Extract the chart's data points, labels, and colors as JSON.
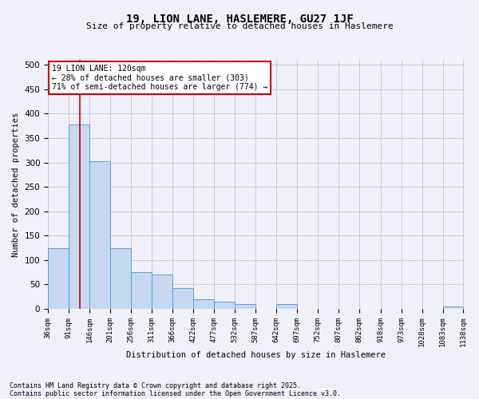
{
  "title1": "19, LION LANE, HASLEMERE, GU27 1JF",
  "title2": "Size of property relative to detached houses in Haslemere",
  "xlabel": "Distribution of detached houses by size in Haslemere",
  "ylabel": "Number of detached properties",
  "bar_heights": [
    125,
    378,
    303,
    125,
    75,
    70,
    42,
    20,
    15,
    10,
    0,
    10,
    0,
    0,
    0,
    0,
    0,
    0,
    0,
    5
  ],
  "bin_edges": [
    36,
    91,
    146,
    201,
    256,
    311,
    366,
    422,
    477,
    532,
    587,
    642,
    697,
    752,
    807,
    862,
    918,
    973,
    1028,
    1083,
    1138
  ],
  "tick_labels": [
    "36sqm",
    "91sqm",
    "146sqm",
    "201sqm",
    "256sqm",
    "311sqm",
    "366sqm",
    "422sqm",
    "477sqm",
    "532sqm",
    "587sqm",
    "642sqm",
    "697sqm",
    "752sqm",
    "807sqm",
    "862sqm",
    "918sqm",
    "973sqm",
    "1028sqm",
    "1083sqm",
    "1138sqm"
  ],
  "bar_color": "#c5d8ef",
  "bar_edge_color": "#5a9fd4",
  "property_line_x": 120,
  "annotation_text": "19 LION LANE: 120sqm\n← 28% of detached houses are smaller (303)\n71% of semi-detached houses are larger (774) →",
  "annotation_box_color": "#ffffff",
  "annotation_box_edge_color": "#cc0000",
  "red_line_color": "#cc0000",
  "ylim": [
    0,
    510
  ],
  "yticks": [
    0,
    50,
    100,
    150,
    200,
    250,
    300,
    350,
    400,
    450,
    500
  ],
  "footnote1": "Contains HM Land Registry data © Crown copyright and database right 2025.",
  "footnote2": "Contains public sector information licensed under the Open Government Licence v3.0.",
  "background_color": "#f0f0fa",
  "grid_color": "#c8c8dc"
}
